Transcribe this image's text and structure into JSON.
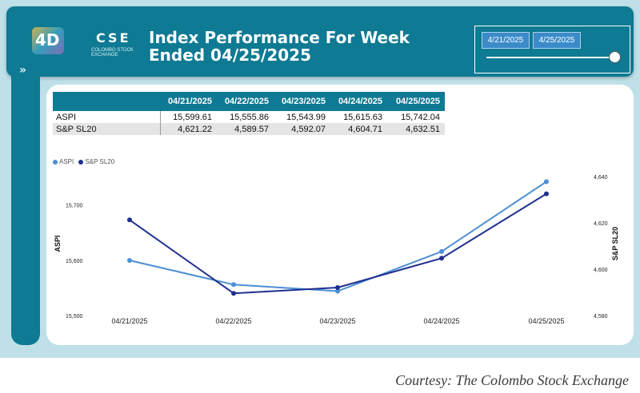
{
  "header": {
    "title": "Index Performance For Week Ended 04/25/2025",
    "logo_text": "CSE",
    "logo_subtitle": "COLOMBO STOCK EXCHANGE"
  },
  "date_filter": {
    "start": "4/21/2025",
    "end": "4/25/2025"
  },
  "table": {
    "columns": [
      "",
      "04/21/2025",
      "04/22/2025",
      "04/23/2025",
      "04/24/2025",
      "04/25/2025"
    ],
    "rows": [
      {
        "label": "ASPI",
        "values": [
          "15,599.61",
          "15,555.86",
          "15,543.99",
          "15,615.63",
          "15,742.04"
        ]
      },
      {
        "label": "S&P SL20",
        "values": [
          "4,621.22",
          "4,589.57",
          "4,592.07",
          "4,604.71",
          "4,632.51"
        ]
      }
    ]
  },
  "chart_data": {
    "type": "line",
    "categories": [
      "04/21/2025",
      "04/22/2025",
      "04/23/2025",
      "04/24/2025",
      "04/25/2025"
    ],
    "series": [
      {
        "name": "ASPI",
        "axis": "left",
        "color": "#4a8fd4",
        "values": [
          15599.61,
          15555.86,
          15543.99,
          15615.63,
          15742.04
        ]
      },
      {
        "name": "S&P SL20",
        "axis": "right",
        "color": "#1f2f8f",
        "values": [
          4621.22,
          4589.57,
          4592.07,
          4604.71,
          4632.51
        ]
      }
    ],
    "ylabel_left": "ASPI",
    "ylabel_right": "S&P SL20",
    "ylim_left": [
      15500,
      15760
    ],
    "yticks_left": [
      "15,500",
      "15,600",
      "15,700"
    ],
    "ylim_right": [
      4580,
      4642
    ],
    "yticks_right": [
      "4,580",
      "4,600",
      "4,620",
      "4,640"
    ],
    "legend_position": "top-left",
    "grid": false
  },
  "footer": {
    "courtesy": "Courtesy: The Colombo Stock Exchange"
  }
}
